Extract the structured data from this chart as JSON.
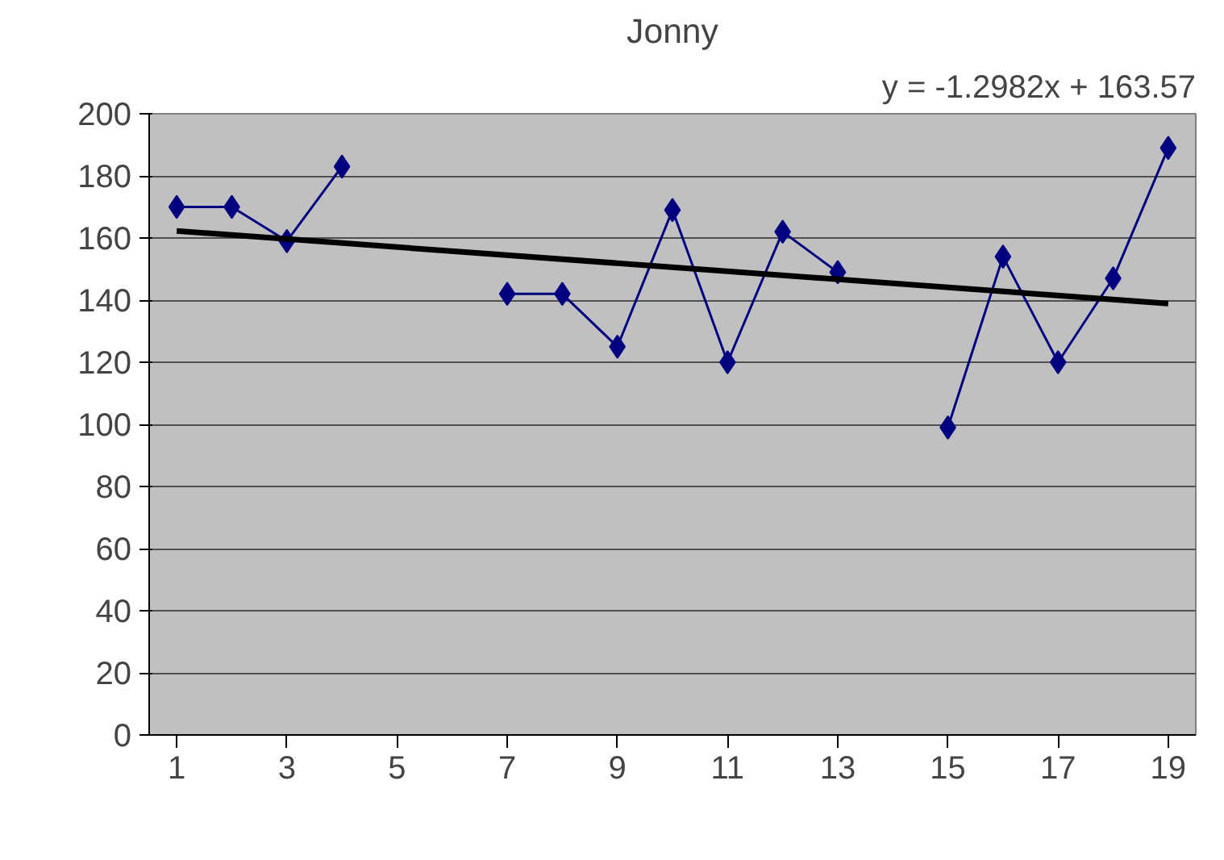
{
  "chart_data": {
    "type": "line",
    "title": "Jonny",
    "annotations": [
      "y = -1.2982x + 163.57"
    ],
    "x": [
      1,
      2,
      3,
      4,
      5,
      6,
      7,
      8,
      9,
      10,
      11,
      12,
      13,
      14,
      15,
      16,
      17,
      18,
      19
    ],
    "series": [
      {
        "color": "#000080",
        "marker": "diamond",
        "values": [
          170,
          170,
          159,
          183,
          null,
          null,
          142,
          142,
          125,
          169,
          120,
          162,
          149,
          null,
          99,
          154,
          120,
          147,
          189
        ]
      },
      {
        "type": "line",
        "color": "#000000",
        "marker": "none",
        "x": [
          1,
          19
        ],
        "values": [
          162.27,
          138.9
        ]
      }
    ],
    "xlim": [
      0.5,
      19.5
    ],
    "xticks": [
      1,
      3,
      5,
      7,
      9,
      11,
      13,
      15,
      17,
      19
    ],
    "ylim": [
      0,
      200
    ],
    "yticks": [
      0,
      20,
      40,
      60,
      80,
      100,
      120,
      140,
      160,
      180,
      200
    ],
    "grid": "y"
  }
}
